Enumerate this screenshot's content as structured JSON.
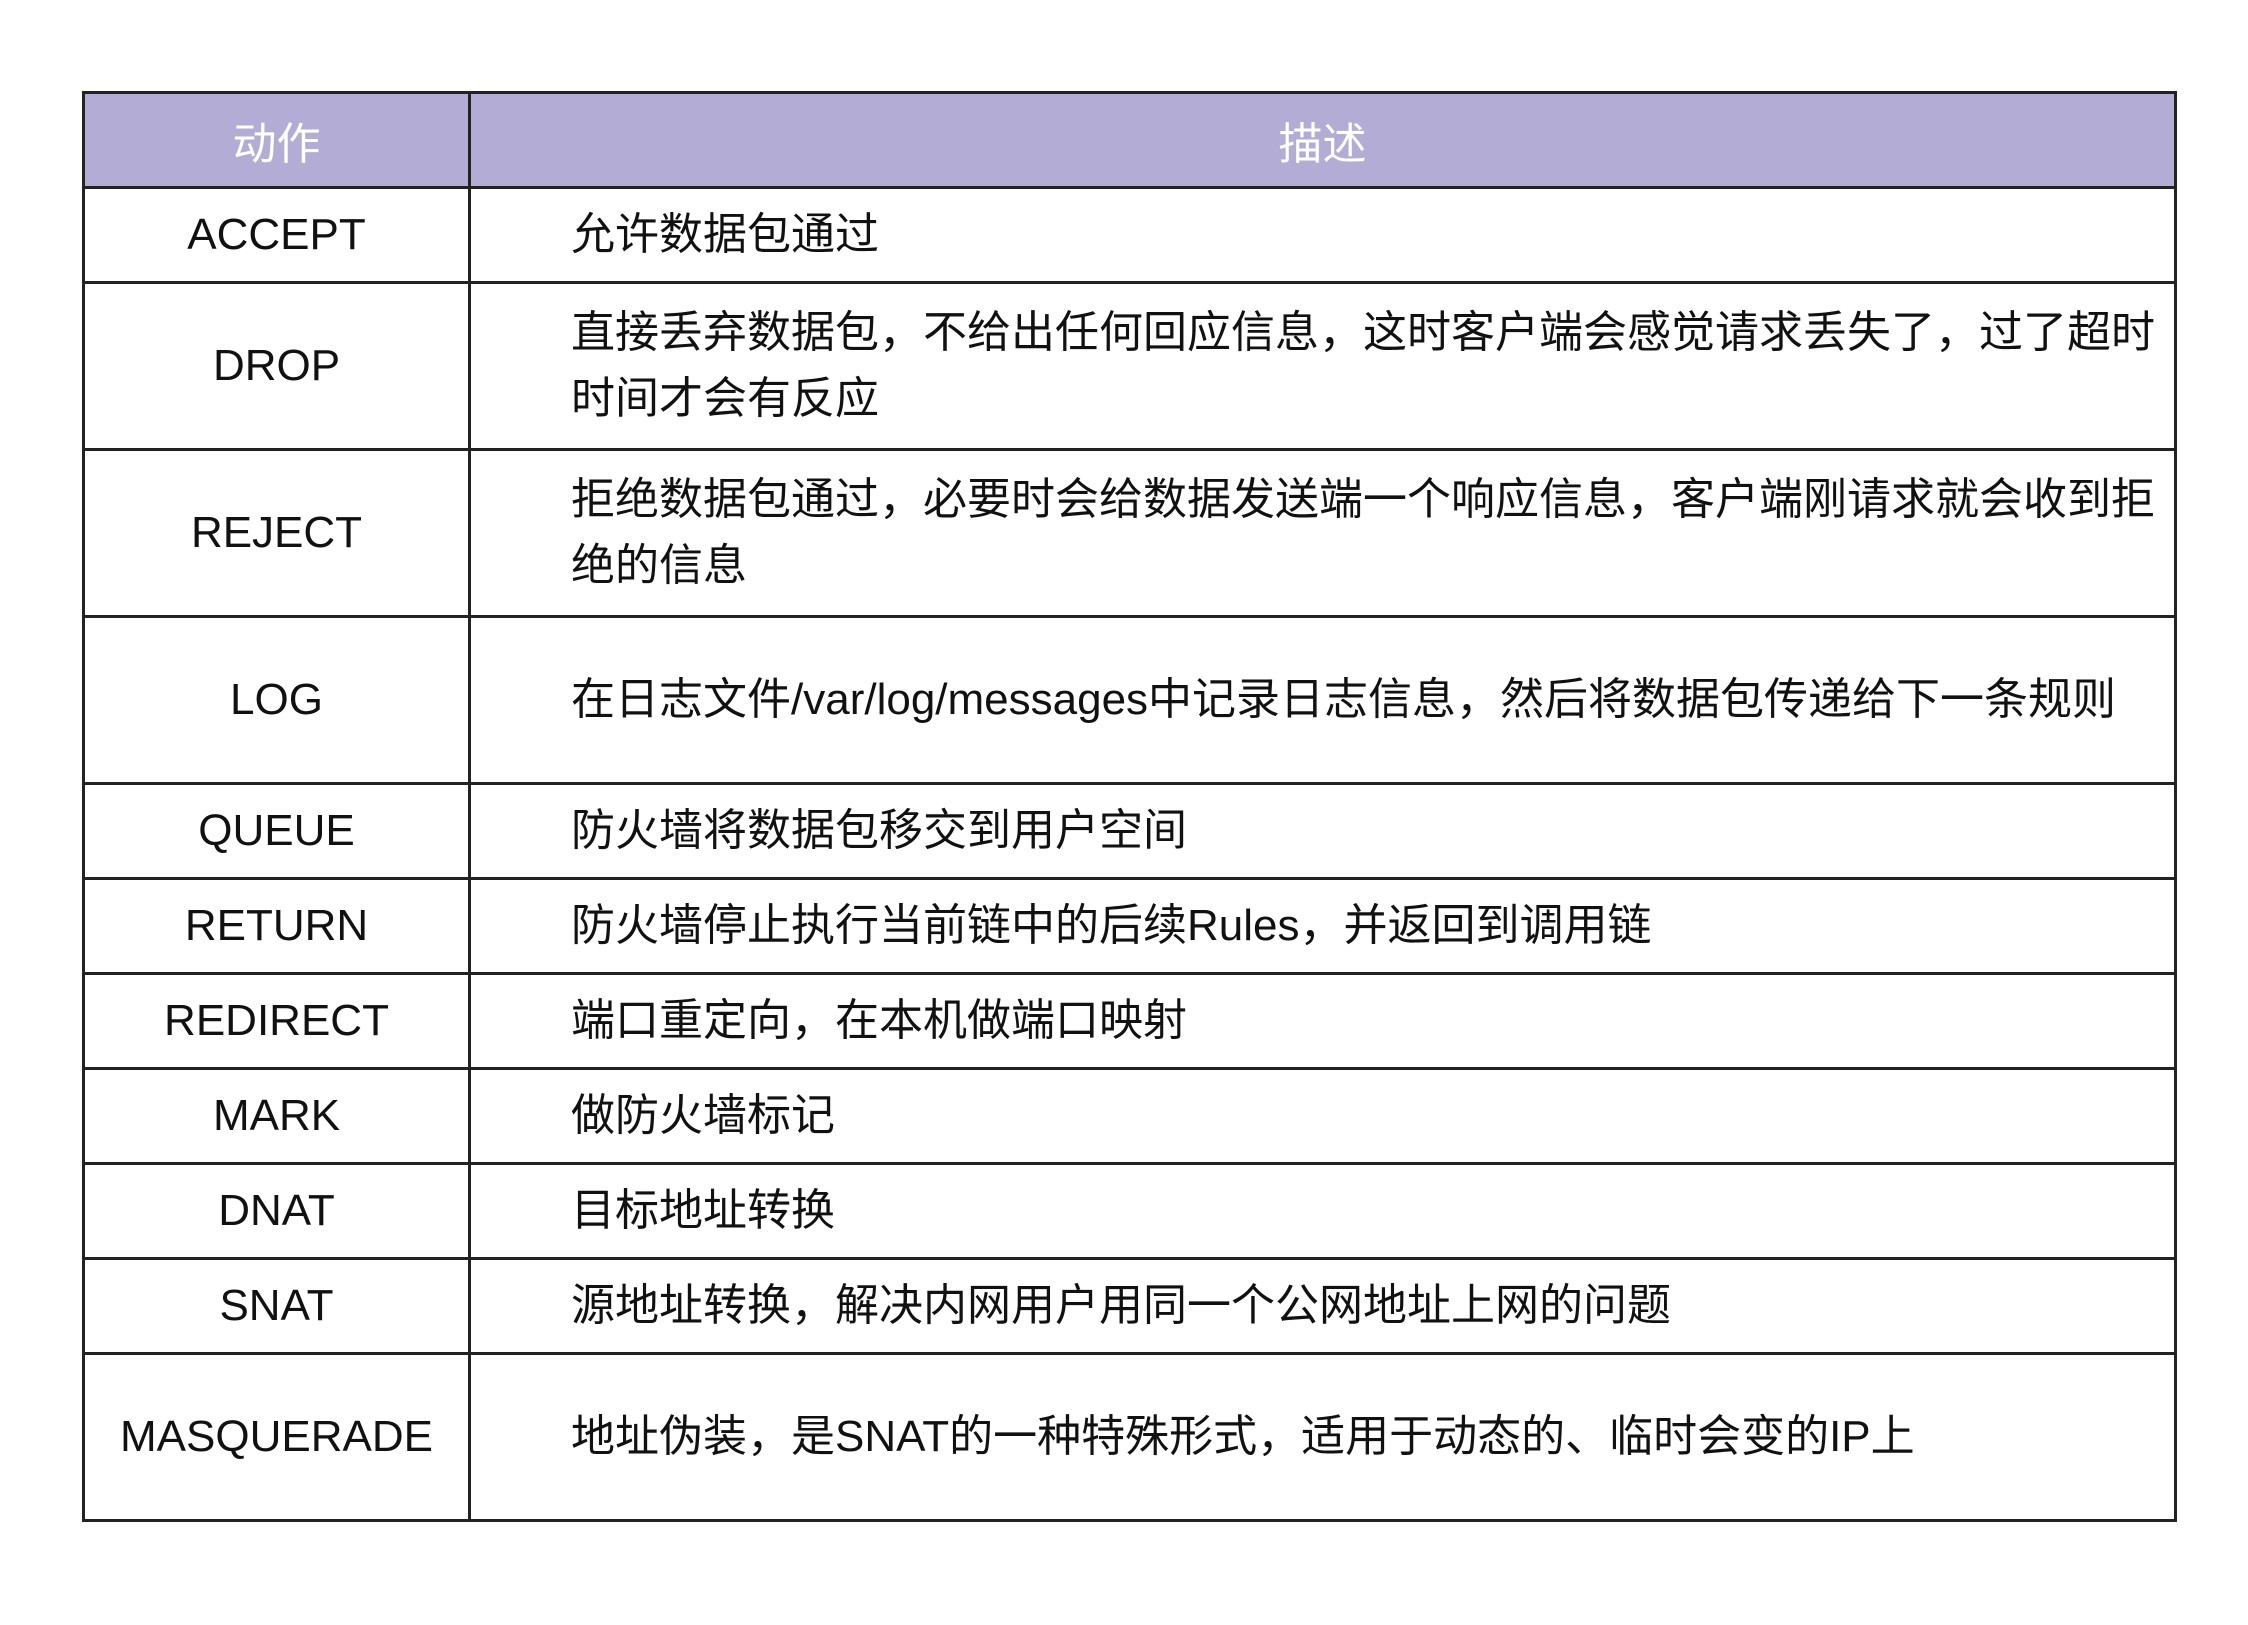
{
  "table": {
    "header_color": "#b3acd4",
    "headers": {
      "action": "动作",
      "description": "描述"
    },
    "rows": [
      {
        "action": "ACCEPT",
        "description": "允许数据包通过"
      },
      {
        "action": "DROP",
        "description": "直接丢弃数据包，不给出任何回应信息，这时客户端会感觉请求丢失了，过了超时时间才会有反应"
      },
      {
        "action": "REJECT",
        "description": "拒绝数据包通过，必要时会给数据发送端一个响应信息，客户端刚请求就会收到拒绝的信息"
      },
      {
        "action": "LOG",
        "description": "在日志文件/var/log/messages中记录日志信息，然后将数据包传递给下一条规则"
      },
      {
        "action": "QUEUE",
        "description": "防火墙将数据包移交到用户空间"
      },
      {
        "action": "RETURN",
        "description": "防火墙停止执行当前链中的后续Rules，并返回到调用链"
      },
      {
        "action": "REDIRECT",
        "description": "端口重定向，在本机做端口映射"
      },
      {
        "action": "MARK",
        "description": "做防火墙标记"
      },
      {
        "action": "DNAT",
        "description": "目标地址转换"
      },
      {
        "action": "SNAT",
        "description": "源地址转换，解决内网用户用同一个公网地址上网的问题"
      },
      {
        "action": "MASQUERADE",
        "description": "地址伪装，是SNAT的一种特殊形式，适用于动态的、临时会变的IP上"
      }
    ]
  }
}
